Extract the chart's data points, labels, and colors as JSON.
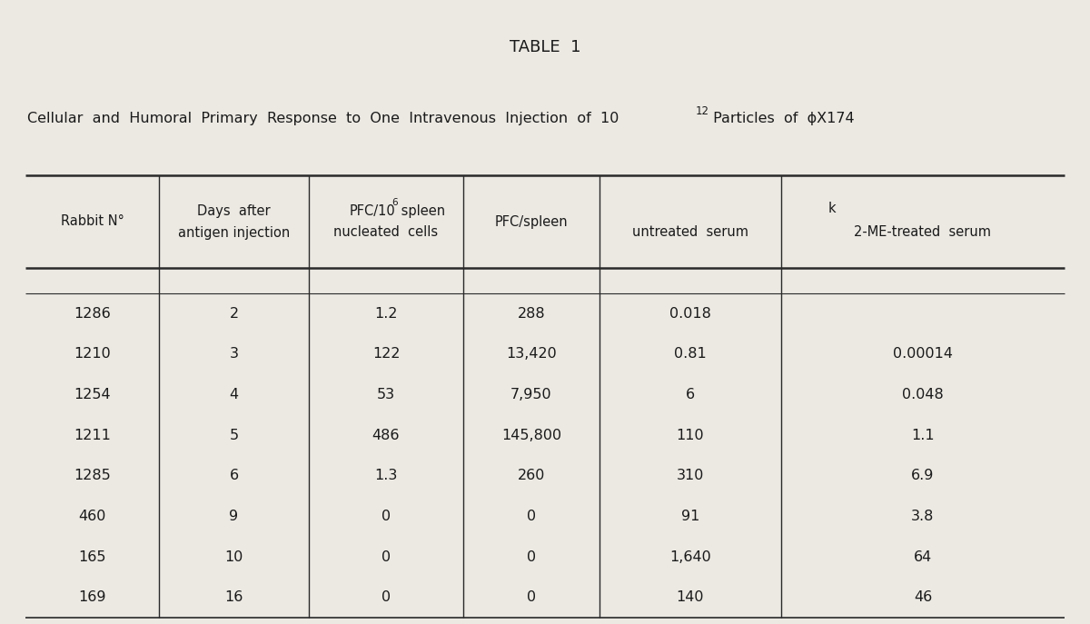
{
  "title": "TABLE  1",
  "subtitle_main": "Cellular  and  Humoral  Primary  Response  to  One  Intravenous  Injection  of  10",
  "subtitle_sup": "12",
  "subtitle_end": " Particles  of  ϕX174",
  "rows": [
    [
      "1286",
      "2",
      "1.2",
      "288",
      "0.018",
      ""
    ],
    [
      "1210",
      "3",
      "122",
      "13,420",
      "0.81",
      "0.00014"
    ],
    [
      "1254",
      "4",
      "53",
      "7,950",
      "6",
      "0.048"
    ],
    [
      "1211",
      "5",
      "486",
      "145,800",
      "110",
      "1.1"
    ],
    [
      "1285",
      "6",
      "1.3",
      "260",
      "310",
      "6.9"
    ],
    [
      "460",
      "9",
      "0",
      "0",
      "91",
      "3.8"
    ],
    [
      "165",
      "10",
      "0",
      "0",
      "1,640",
      "64"
    ],
    [
      "169",
      "16",
      "0",
      "0",
      "140",
      "46"
    ]
  ],
  "bg_color": "#ece9e3",
  "text_color": "#1a1a1a",
  "figsize": [
    12.0,
    6.87
  ]
}
